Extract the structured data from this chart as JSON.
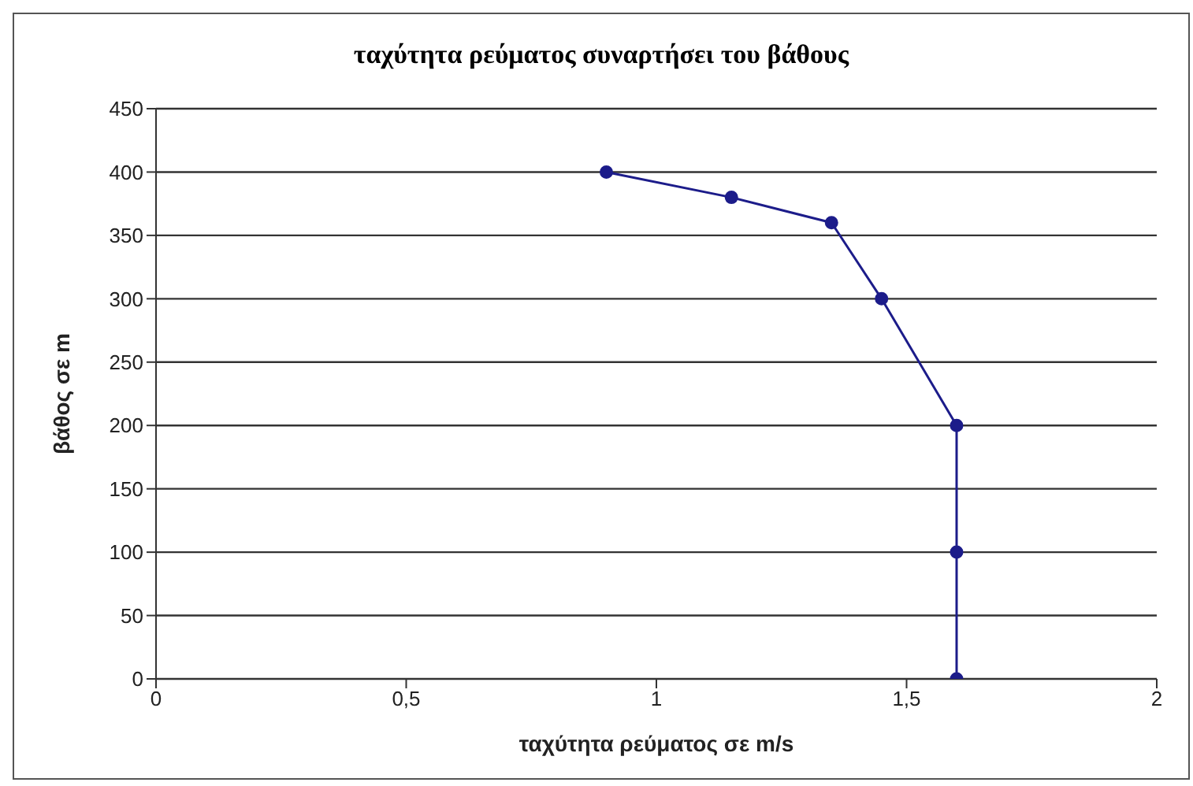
{
  "chart_data": {
    "type": "line",
    "title": "ταχύτητα ρεύματος συναρτήσει του βάθους",
    "xlabel": "ταχύτητα ρεύματος σε m/s",
    "ylabel": "βάθος σε m",
    "x": [
      0.9,
      1.15,
      1.35,
      1.45,
      1.6,
      1.6,
      1.6
    ],
    "series": [
      {
        "color": "#1c1c8a",
        "values": [
          400,
          380,
          360,
          300,
          200,
          100,
          0
        ]
      }
    ],
    "xlim": [
      0,
      2
    ],
    "xticks": [
      0,
      {
        "value": 0.5,
        "label": "0,5"
      },
      1,
      {
        "value": 1.5,
        "label": "1,5"
      },
      2
    ],
    "ylim": [
      0,
      450
    ],
    "yticks": [
      0,
      50,
      100,
      150,
      200,
      250,
      300,
      350,
      400,
      450
    ],
    "grid": "y",
    "legend": false,
    "marker": "circle",
    "line_style": "solid"
  }
}
